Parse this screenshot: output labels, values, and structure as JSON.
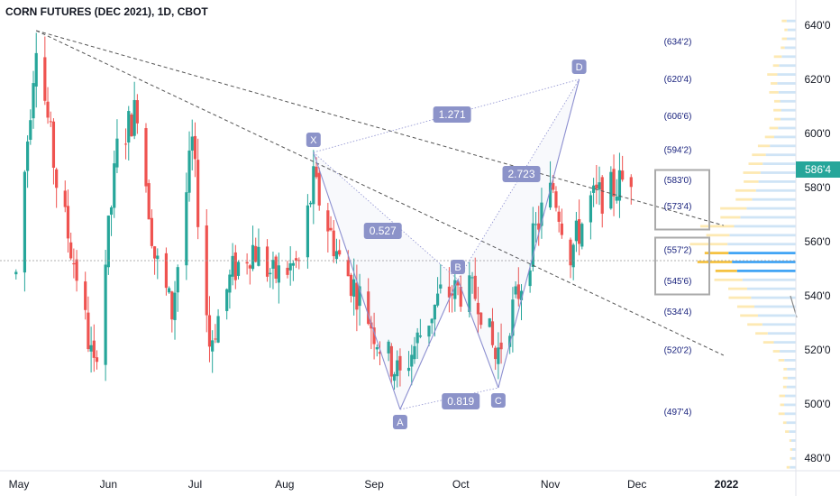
{
  "title": "CORN FUTURES (DEC 2021), 1D, CBOT",
  "last_price": "586'4",
  "colors": {
    "up": "#26a69a",
    "down": "#ef5350",
    "pattern": "#8c8fd0",
    "trend": "#555555",
    "label_bg": "#8c93c9",
    "level_text": "#1a237e",
    "vp_light": "#cfe4f6",
    "vp_yellow": "#fde9b3",
    "vp_blue": "#42a5f5",
    "vp_gold": "#f5c242"
  },
  "chart_data": {
    "type": "candlestick",
    "title": "CORN FUTURES (DEC 2021), 1D, CBOT",
    "y_range": [
      470,
      650
    ],
    "y_ticks": [
      "480'0",
      "500'0",
      "520'0",
      "540'0",
      "560'0",
      "580'0",
      "600'0",
      "620'0",
      "640'0"
    ],
    "x_ticks": [
      "May",
      "Jun",
      "Jul",
      "Aug",
      "Sep",
      "Oct",
      "Nov",
      "Dec",
      "2022"
    ],
    "grid": false,
    "candles_summary": {
      "start": "2021-04-30",
      "end": "2021-11-29",
      "anchors": [
        [
          "2021-04-30",
          548
        ],
        [
          "2021-05-07",
          636
        ],
        [
          "2021-05-14",
          582
        ],
        [
          "2021-05-21",
          548
        ],
        [
          "2021-05-27",
          512
        ],
        [
          "2021-06-04",
          594
        ],
        [
          "2021-06-11",
          610
        ],
        [
          "2021-06-17",
          555
        ],
        [
          "2021-06-23",
          534
        ],
        [
          "2021-06-30",
          596
        ],
        [
          "2021-07-06",
          522
        ],
        [
          "2021-07-14",
          549
        ],
        [
          "2021-07-21",
          558
        ],
        [
          "2021-07-28",
          547
        ],
        [
          "2021-08-06",
          552
        ],
        [
          "2021-08-11",
          582
        ],
        [
          "2021-08-20",
          553
        ],
        [
          "2021-08-27",
          540
        ],
        [
          "2021-09-03",
          522
        ],
        [
          "2021-09-10",
          510
        ],
        [
          "2021-09-17",
          526
        ],
        [
          "2021-09-24",
          540
        ],
        [
          "2021-09-30",
          542
        ],
        [
          "2021-10-07",
          540
        ],
        [
          "2021-10-13",
          517
        ],
        [
          "2021-10-20",
          538
        ],
        [
          "2021-10-29",
          571
        ],
        [
          "2021-11-02",
          580
        ],
        [
          "2021-11-08",
          556
        ],
        [
          "2021-11-15",
          575
        ],
        [
          "2021-11-22",
          579
        ],
        [
          "2021-11-29",
          585
        ]
      ]
    },
    "pattern": {
      "points": [
        {
          "label": "X",
          "date": "2021-08-11",
          "price": 593
        },
        {
          "label": "A",
          "date": "2021-09-10",
          "price": 498
        },
        {
          "label": "B",
          "date": "2021-09-30",
          "price": 546
        },
        {
          "label": "C",
          "date": "2021-10-14",
          "price": 506
        },
        {
          "label": "D",
          "date": "2021-11-11",
          "price": 620
        }
      ],
      "ratios": [
        {
          "label": "1.271",
          "date": "2021-09-28",
          "price": 607
        },
        {
          "label": "0.527",
          "date": "2021-09-04",
          "price": 564
        },
        {
          "label": "2.723",
          "date": "2021-10-22",
          "price": 585
        },
        {
          "label": "0.819",
          "date": "2021-10-01",
          "price": 501
        }
      ]
    },
    "trendlines": [
      {
        "from": [
          "2021-05-07",
          638
        ],
        "to": [
          "2021-12-31",
          566
        ]
      },
      {
        "from": [
          "2021-05-07",
          638
        ],
        "to": [
          "2021-12-31",
          518
        ]
      }
    ],
    "hline": 553,
    "levels": [
      "634'2",
      "620'4",
      "606'6",
      "594'2",
      "583'0",
      "573'4",
      "557'2",
      "545'6",
      "534'4",
      "520'2",
      "497'4"
    ],
    "level_prices": [
      634.2,
      620.4,
      606.6,
      594.2,
      583.0,
      573.4,
      557.2,
      545.6,
      534.4,
      520.2,
      497.4
    ]
  }
}
